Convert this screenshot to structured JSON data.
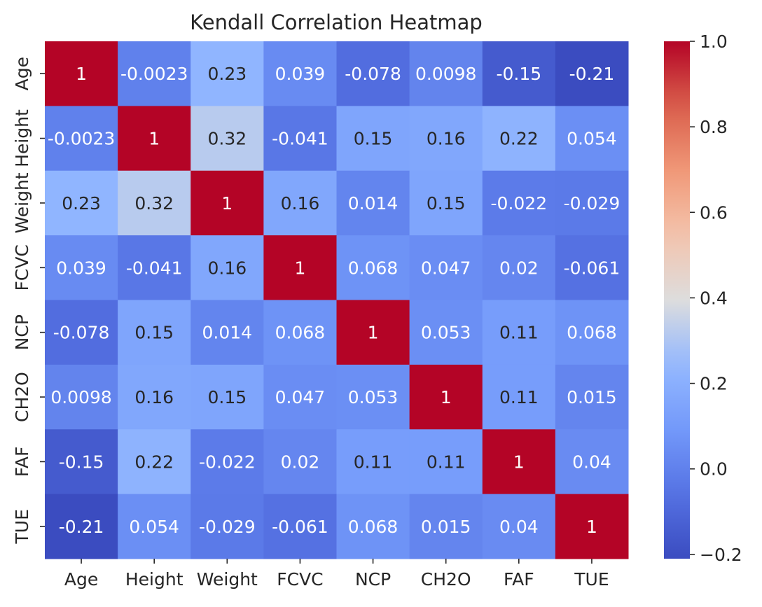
{
  "chart_data": {
    "type": "heatmap",
    "title": "Kendall Correlation Heatmap",
    "xlabel": "",
    "ylabel": "",
    "colormap": "coolwarm",
    "x_categories": [
      "Age",
      "Height",
      "Weight",
      "FCVC",
      "NCP",
      "CH2O",
      "FAF",
      "TUE"
    ],
    "y_categories": [
      "Age",
      "Height",
      "Weight",
      "FCVC",
      "NCP",
      "CH2O",
      "FAF",
      "TUE"
    ],
    "values": [
      [
        1,
        -0.0023,
        0.23,
        0.039,
        -0.078,
        0.0098,
        -0.15,
        -0.21
      ],
      [
        -0.0023,
        1,
        0.32,
        -0.041,
        0.15,
        0.16,
        0.22,
        0.054
      ],
      [
        0.23,
        0.32,
        1,
        0.16,
        0.014,
        0.15,
        -0.022,
        -0.029
      ],
      [
        0.039,
        -0.041,
        0.16,
        1,
        0.068,
        0.047,
        0.02,
        -0.061
      ],
      [
        -0.078,
        0.15,
        0.014,
        0.068,
        1,
        0.053,
        0.11,
        0.068
      ],
      [
        0.0098,
        0.16,
        0.15,
        0.047,
        0.053,
        1,
        0.11,
        0.015
      ],
      [
        -0.15,
        0.22,
        -0.022,
        0.02,
        0.11,
        0.11,
        1,
        0.04
      ],
      [
        -0.21,
        0.054,
        -0.029,
        -0.061,
        0.068,
        0.015,
        0.04,
        1
      ]
    ],
    "cell_labels": [
      [
        "1",
        "-0.0023",
        "0.23",
        "0.039",
        "-0.078",
        "0.0098",
        "-0.15",
        "-0.21"
      ],
      [
        "-0.0023",
        "1",
        "0.32",
        "-0.041",
        "0.15",
        "0.16",
        "0.22",
        "0.054"
      ],
      [
        "0.23",
        "0.32",
        "1",
        "0.16",
        "0.014",
        "0.15",
        "-0.022",
        "-0.029"
      ],
      [
        "0.039",
        "-0.041",
        "0.16",
        "1",
        "0.068",
        "0.047",
        "0.02",
        "-0.061"
      ],
      [
        "-0.078",
        "0.15",
        "0.014",
        "0.068",
        "1",
        "0.053",
        "0.11",
        "0.068"
      ],
      [
        "0.0098",
        "0.16",
        "0.15",
        "0.047",
        "0.053",
        "1",
        "0.11",
        "0.015"
      ],
      [
        "-0.15",
        "0.22",
        "-0.022",
        "0.02",
        "0.11",
        "0.11",
        "1",
        "0.04"
      ],
      [
        "-0.21",
        "0.054",
        "-0.029",
        "-0.061",
        "0.068",
        "0.015",
        "0.04",
        "1"
      ]
    ],
    "vmin": -0.21,
    "vmax": 1,
    "colorbar_ticks": [
      1.0,
      0.8,
      0.6,
      0.4,
      0.2,
      0.0,
      -0.2
    ],
    "colorbar_tick_labels": [
      "1.0",
      "0.8",
      "0.6",
      "0.4",
      "0.2",
      "0.0",
      "−0.2"
    ],
    "grid": false
  }
}
